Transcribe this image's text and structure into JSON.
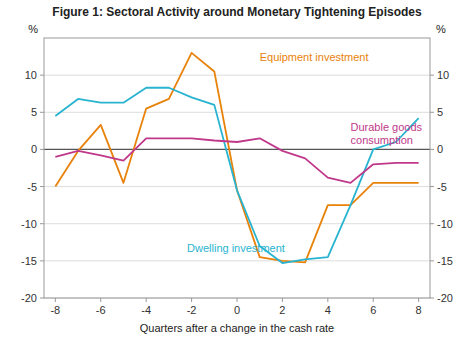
{
  "chart_data": {
    "type": "line",
    "title": "Figure 1: Sectoral Activity around Monetary Tightening Episodes",
    "x_label": "Quarters after a change in the cash rate",
    "y_label": "%",
    "y2_label": "%",
    "x": [
      -8,
      -7,
      -6,
      -5,
      -4,
      -3,
      -2,
      -1,
      0,
      1,
      2,
      3,
      4,
      5,
      6,
      7,
      8
    ],
    "xlim": [
      -8.5,
      8.5
    ],
    "xticks": [
      -8,
      -6,
      -4,
      -2,
      0,
      2,
      4,
      6,
      8
    ],
    "ylim": [
      -20,
      15
    ],
    "yticks": [
      -20,
      -15,
      -10,
      -5,
      0,
      5,
      10
    ],
    "y2lim": [
      -20,
      15
    ],
    "y2ticks": [
      -20,
      -15,
      -10,
      -5,
      0,
      5,
      10
    ],
    "grid": true,
    "series": [
      {
        "color": "#E8820A",
        "values": [
          -5.0,
          -0.2,
          3.3,
          -4.5,
          5.5,
          6.8,
          13.0,
          10.5,
          -5.5,
          -14.5,
          -15.0,
          -15.2,
          -7.5,
          -7.5,
          -4.5,
          -4.5,
          -4.5
        ]
      },
      {
        "color": "#28B4D0",
        "values": [
          4.5,
          6.8,
          6.3,
          6.3,
          8.3,
          8.3,
          7.0,
          6.0,
          -5.5,
          -13.0,
          -15.3,
          -14.8,
          -14.5,
          -7.5,
          0.0,
          1.0,
          4.2
        ]
      },
      {
        "color": "#C0388A",
        "values": [
          -1.0,
          -0.2,
          -0.8,
          -1.5,
          1.5,
          1.5,
          1.5,
          1.2,
          1.0,
          1.5,
          -0.2,
          -1.2,
          -3.8,
          -4.5,
          -2.0,
          -1.8,
          -1.8
        ]
      }
    ],
    "annotations": [
      {
        "text": "Equipment investment",
        "x": 1.0,
        "y": 13.2,
        "color": "#E8820A"
      },
      {
        "text": "Dwelling investment",
        "x": -2.2,
        "y": -12.5,
        "color": "#28B4D0"
      },
      {
        "text": "Durable goods\nconsumption",
        "x": 5.0,
        "y": 3.8,
        "color": "#C0388A"
      }
    ]
  }
}
